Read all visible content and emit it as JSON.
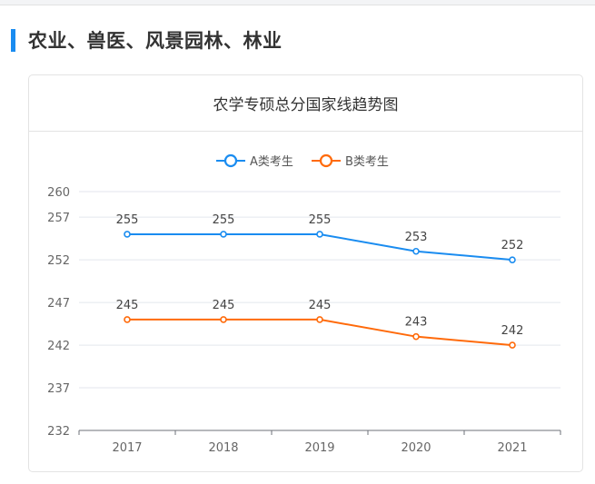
{
  "section_title": "农业、兽医、风景园林、林业",
  "chart_data": {
    "type": "line",
    "title": "农学专硕总分国家线趋势图",
    "categories": [
      "2017",
      "2018",
      "2019",
      "2020",
      "2021"
    ],
    "series": [
      {
        "name": "A类考生",
        "values": [
          255,
          255,
          255,
          253,
          252
        ],
        "color": "#1a8cf0"
      },
      {
        "name": "B类考生",
        "values": [
          245,
          245,
          245,
          243,
          242
        ],
        "color": "#ff6a0a"
      }
    ],
    "y_ticks": [
      232,
      237,
      242,
      247,
      252,
      257,
      260
    ],
    "ylim": [
      232,
      260
    ],
    "grid": true,
    "legend": "top-center",
    "xlabel": "",
    "ylabel": ""
  }
}
